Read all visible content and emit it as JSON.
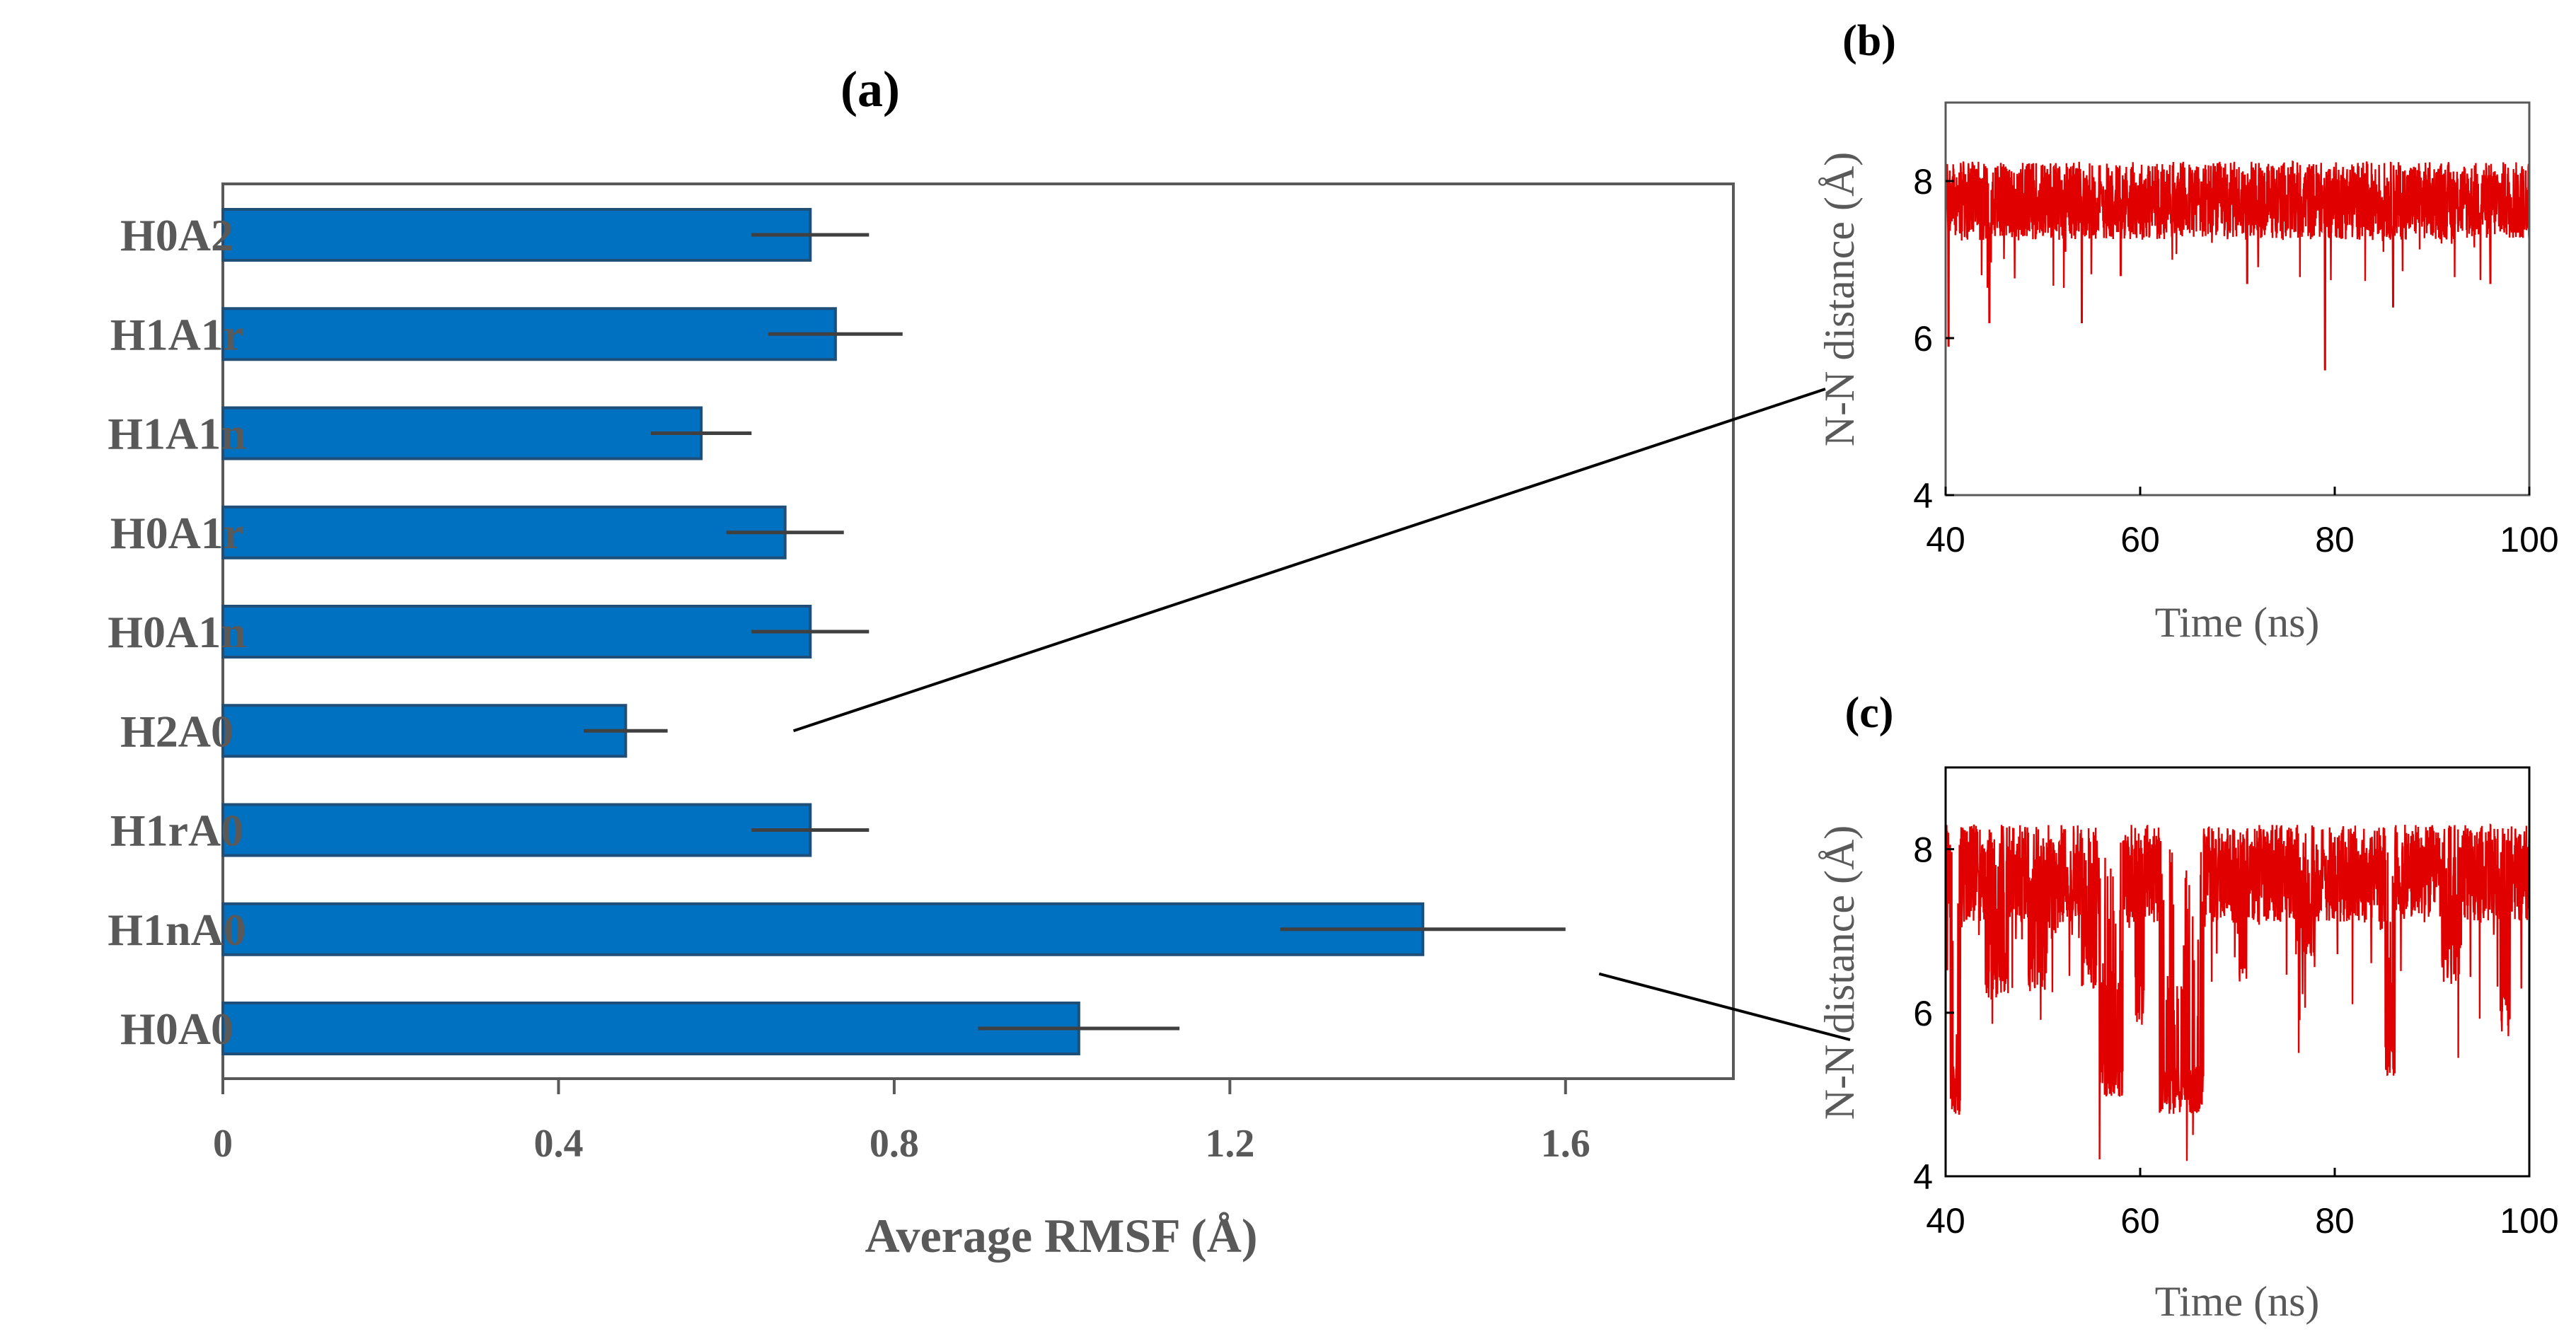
{
  "colors": {
    "bar": "#0070C0",
    "bar_edge": "#1F4E79",
    "error": "#404040",
    "trace": "#E00000",
    "frame": "#595959",
    "label_gray": "#595959"
  },
  "chart_data": [
    {
      "id": "a",
      "type": "bar",
      "orientation": "horizontal",
      "title": "(a)",
      "title_letter": "a",
      "xlabel": "Average RMSF (Å)",
      "categories": [
        "H0A2",
        "H1A1r",
        "H1A1n",
        "H0A1r",
        "H0A1n",
        "H2A0",
        "H1rA0",
        "H1nA0",
        "H0A0"
      ],
      "values": [
        0.7,
        0.73,
        0.57,
        0.67,
        0.7,
        0.48,
        0.7,
        1.43,
        1.02
      ],
      "errors": [
        0.07,
        0.08,
        0.06,
        0.07,
        0.07,
        0.05,
        0.07,
        0.17,
        0.12
      ],
      "xlim": [
        0,
        1.8
      ],
      "xticks": [
        0,
        0.4,
        0.8,
        1.2,
        1.6
      ],
      "xtick_labels": [
        "0",
        "0.4",
        "0.8",
        "1.2",
        "1.6"
      ],
      "annotations": [
        {
          "from_category": "H2A0",
          "to_panel": "b"
        },
        {
          "from_category": "H1nA0",
          "to_panel": "c"
        }
      ]
    },
    {
      "id": "b",
      "type": "line",
      "title": "(b)",
      "title_letter": "b",
      "xlabel": "Time (ns)",
      "ylabel": "N-N distance (Å)",
      "xlim": [
        40,
        100
      ],
      "ylim": [
        4,
        9
      ],
      "xticks": [
        40,
        60,
        80,
        100
      ],
      "xtick_labels": [
        "40",
        "60",
        "80",
        "100"
      ],
      "yticks": [
        4,
        6,
        8
      ],
      "ytick_labels": [
        "4",
        "6",
        "8"
      ],
      "series_description": "steady fluctuation around 7.7 Å",
      "baseline": 7.7,
      "band": [
        7.25,
        8.25
      ],
      "dips": [
        [
          40.3,
          5.9
        ],
        [
          44.5,
          6.2
        ],
        [
          54.0,
          6.2
        ],
        [
          58.0,
          6.8
        ],
        [
          71.0,
          6.7
        ],
        [
          79.0,
          5.6
        ],
        [
          86.0,
          6.4
        ],
        [
          96.0,
          6.7
        ]
      ]
    },
    {
      "id": "c",
      "type": "line",
      "title": "(c)",
      "title_letter": "c",
      "xlabel": "Time (ns)",
      "ylabel": "N-N distance (Å)",
      "xlim": [
        40,
        100
      ],
      "ylim": [
        4,
        9
      ],
      "xticks": [
        40,
        60,
        80,
        100
      ],
      "xtick_labels": [
        "40",
        "60",
        "80",
        "100"
      ],
      "yticks": [
        4,
        6,
        8
      ],
      "ytick_labels": [
        "4",
        "6",
        "8"
      ],
      "series_description": "fluctuates near 7.7 Å with transitions down to ~5 Å",
      "baseline": 7.7,
      "band": [
        7.1,
        8.3
      ],
      "low_segments": [
        [
          40.5,
          41.5,
          5.0
        ],
        [
          55.8,
          58.2,
          5.2
        ],
        [
          62.0,
          66.5,
          5.0
        ],
        [
          85.2,
          86.2,
          5.4
        ]
      ],
      "mid_segments": [
        [
          44.0,
          46.5,
          6.5
        ],
        [
          48.5,
          50.5,
          6.6
        ],
        [
          54.0,
          55.5,
          6.6
        ],
        [
          59.5,
          60.5,
          6.2
        ],
        [
          70.0,
          71.0,
          6.7
        ],
        [
          76.0,
          78.0,
          6.9
        ],
        [
          91.0,
          93.0,
          6.7
        ],
        [
          97.0,
          98.0,
          6.0
        ]
      ]
    }
  ]
}
